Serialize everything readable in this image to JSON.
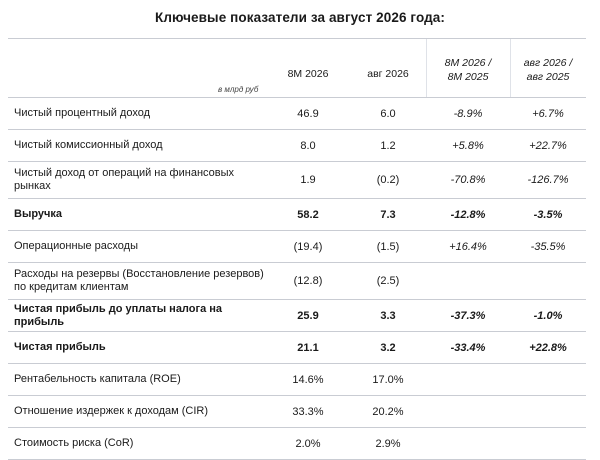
{
  "title": "Ключевые показатели за август 2026 года:",
  "header": {
    "unit": "в млрд руб",
    "col1": "8M 2026",
    "col2": "авг 2026",
    "col3_line1": "8M 2026 /",
    "col3_line2": "8M 2025",
    "col4_line1": "авг 2026 /",
    "col4_line2": "авг 2025"
  },
  "rows": [
    {
      "label": "Чистый процентный доход",
      "v1": "46.9",
      "v2": "6.0",
      "v3": "-8.9%",
      "v4": "+6.7%"
    },
    {
      "label": "Чистый комиссионный доход",
      "v1": "8.0",
      "v2": "1.2",
      "v3": "+5.8%",
      "v4": "+22.7%"
    },
    {
      "label": "Чистый доход от операций на финансовых рынках",
      "v1": "1.9",
      "v2": "(0.2)",
      "v3": "-70.8%",
      "v4": "-126.7%"
    },
    {
      "label": "Выручка",
      "v1": "58.2",
      "v2": "7.3",
      "v3": "-12.8%",
      "v4": "-3.5%"
    },
    {
      "label": "Операционные расходы",
      "v1": "(19.4)",
      "v2": "(1.5)",
      "v3": "+16.4%",
      "v4": "-35.5%"
    },
    {
      "label": "Расходы на резервы (Восстановление резервов) по кредитам клиентам",
      "v1": "(12.8)",
      "v2": "(2.5)",
      "v3": "",
      "v4": ""
    },
    {
      "label": "Чистая прибыль до уплаты налога на прибыль",
      "v1": "25.9",
      "v2": "3.3",
      "v3": "-37.3%",
      "v4": "-1.0%"
    },
    {
      "label": "Чистая прибыль",
      "v1": "21.1",
      "v2": "3.2",
      "v3": "-33.4%",
      "v4": "+22.8%"
    },
    {
      "label": "Рентабельность капитала (ROE)",
      "v1": "14.6%",
      "v2": "17.0%",
      "v3": "",
      "v4": ""
    },
    {
      "label": "Отношение издержек к доходам (CIR)",
      "v1": "33.3%",
      "v2": "20.2%",
      "v3": "",
      "v4": ""
    },
    {
      "label": "Стоимость риска (CoR)",
      "v1": "2.0%",
      "v2": "2.9%",
      "v3": "",
      "v4": ""
    }
  ]
}
